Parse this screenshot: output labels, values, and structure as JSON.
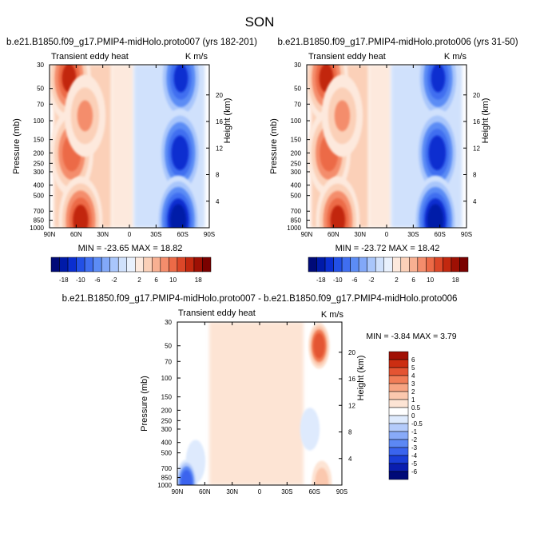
{
  "figure_title": "SON",
  "colors": {
    "red": "#c22410",
    "red_light": "#fbe1d2",
    "blue": "#1338d8",
    "blue_light": "#d6e5fb",
    "scale_left": [
      "#000a78",
      "#001aa8",
      "#0a2ed0",
      "#2250e6",
      "#3f6ef0",
      "#5c8cf5",
      "#82a8f8",
      "#a9c6fb",
      "#d0e1fc",
      "#e9f1fd",
      "#fde9dd",
      "#fbd0b8",
      "#f8b092",
      "#f48d6c",
      "#ec6a47",
      "#dc4728",
      "#c2280f",
      "#9e1004",
      "#7a0100"
    ],
    "scale_diff": [
      "#000a78",
      "#0a1eb0",
      "#1a3ed8",
      "#3a64ee",
      "#5c88f4",
      "#88aaf8",
      "#b4cbfb",
      "#deeafd",
      "#ffffff",
      "#fde4d4",
      "#fbc8ae",
      "#f7a482",
      "#f17d57",
      "#e45432",
      "#cc2e12",
      "#a11004"
    ]
  },
  "panels": [
    {
      "title": "b.e21.B1850.f09_g17.PMIP4-midHolo.proto007 (yrs 182-201)",
      "left_string": "Transient eddy heat",
      "right_string": "K m/s",
      "min": "-23.65",
      "max": "18.82",
      "minmax_text": "MIN = -23.65  MAX = 18.82"
    },
    {
      "title": "b.e21.B1850.f09_g17.PMIP4-midHolo.proto006 (yrs 31-50)",
      "left_string": "Transient eddy heat",
      "right_string": "K m/s",
      "min": "-23.72",
      "max": "18.42",
      "minmax_text": "MIN = -23.72  MAX = 18.42"
    },
    {
      "title": "b.e21.B1850.f09_g17.PMIP4-midHolo.proto007 - b.e21.B1850.f09_g17.PMIP4-midHolo.proto006",
      "left_string": "Transient eddy heat",
      "right_string": "K m/s",
      "min": "-3.84",
      "max": "3.79",
      "minmax_text": "MIN =  -3.84  MAX =   3.79"
    }
  ],
  "axes": {
    "x_ticks": [
      "90N",
      "60N",
      "30N",
      "0",
      "30S",
      "60S",
      "90S"
    ],
    "y_ticks": [
      "30",
      "50",
      "70",
      "100",
      "150",
      "200",
      "250",
      "300",
      "400",
      "500",
      "700",
      "850",
      "1000"
    ],
    "y_label": "Pressure (mb)",
    "height_ticks": [
      "20",
      "16",
      "12",
      "8",
      "4"
    ],
    "height_label": "Height (km)"
  },
  "colorbars": {
    "horizontal_labels": [
      "-18",
      "-10",
      "-6",
      "-2",
      "2",
      "6",
      "10",
      "18"
    ],
    "vertical_labels": [
      "6",
      "5",
      "4",
      "3",
      "2",
      "1",
      "0.5",
      "0",
      "-0.5",
      "-1",
      "-2",
      "-3",
      "-4",
      "-5",
      "-6"
    ]
  },
  "chart_data": [
    {
      "type": "heatmap",
      "title": "b.e21.B1850.f09_g17.PMIP4-midHolo.proto007 (yrs 182-201)",
      "xlabel": "",
      "ylabel": "Pressure (mb)",
      "y2label": "Height (km)",
      "x_range": [
        "90N",
        "90S"
      ],
      "y_range_mb": [
        1000,
        30
      ],
      "min": -23.65,
      "max": 18.82,
      "field": [
        {
          "lat": 68,
          "p": 40,
          "value": 18,
          "sign": 1
        },
        {
          "lat": 65,
          "p": 200,
          "value": 16,
          "sign": 1
        },
        {
          "lat": 55,
          "p": 850,
          "value": 18.8,
          "sign": 1
        },
        {
          "lat": 50,
          "p": 90,
          "value": 10,
          "sign": 1
        },
        {
          "lat": -58,
          "p": 40,
          "value": -18,
          "sign": -1
        },
        {
          "lat": -57,
          "p": 200,
          "value": -20,
          "sign": -1
        },
        {
          "lat": -55,
          "p": 850,
          "value": -23.6,
          "sign": -1
        }
      ],
      "levels": [
        -18,
        -16,
        -14,
        -12,
        -10,
        -8,
        -6,
        -4,
        -2,
        0,
        2,
        4,
        6,
        8,
        10,
        12,
        14,
        16,
        18
      ]
    },
    {
      "type": "heatmap",
      "title": "b.e21.B1850.f09_g17.PMIP4-midHolo.proto006 (yrs 31-50)",
      "xlabel": "",
      "ylabel": "Pressure (mb)",
      "y2label": "Height (km)",
      "x_range": [
        "90N",
        "90S"
      ],
      "y_range_mb": [
        1000,
        30
      ],
      "min": -23.72,
      "max": 18.42,
      "field": [
        {
          "lat": 68,
          "p": 40,
          "value": 18,
          "sign": 1
        },
        {
          "lat": 65,
          "p": 200,
          "value": 16,
          "sign": 1
        },
        {
          "lat": 55,
          "p": 850,
          "value": 18.4,
          "sign": 1
        },
        {
          "lat": 50,
          "p": 90,
          "value": 10,
          "sign": 1
        },
        {
          "lat": -58,
          "p": 40,
          "value": -18,
          "sign": -1
        },
        {
          "lat": -57,
          "p": 200,
          "value": -20,
          "sign": -1
        },
        {
          "lat": -55,
          "p": 850,
          "value": -23.7,
          "sign": -1
        }
      ],
      "levels": [
        -18,
        -16,
        -14,
        -12,
        -10,
        -8,
        -6,
        -4,
        -2,
        0,
        2,
        4,
        6,
        8,
        10,
        12,
        14,
        16,
        18
      ]
    },
    {
      "type": "heatmap",
      "title": "b.e21.B1850.f09_g17.PMIP4-midHolo.proto007 - b.e21.B1850.f09_g17.PMIP4-midHolo.proto006",
      "xlabel": "",
      "ylabel": "Pressure (mb)",
      "y2label": "Height (km)",
      "x_range": [
        "90N",
        "90S"
      ],
      "y_range_mb": [
        1000,
        30
      ],
      "min": -3.84,
      "max": 3.79,
      "field": [
        {
          "lat": -65,
          "p": 50,
          "value": 3.79,
          "sign": 1
        },
        {
          "lat": -68,
          "p": 950,
          "value": 1,
          "sign": 1
        },
        {
          "lat": 30,
          "p": 200,
          "value": 0.3,
          "sign": 1
        },
        {
          "lat": -20,
          "p": 500,
          "value": 0.3,
          "sign": 1
        },
        {
          "lat": -55,
          "p": 300,
          "value": -0.5,
          "sign": -1
        },
        {
          "lat": 70,
          "p": 600,
          "value": -0.5,
          "sign": -1
        },
        {
          "lat": 80,
          "p": 950,
          "value": -3.84,
          "sign": -1
        }
      ],
      "levels": [
        -6,
        -5,
        -4,
        -3,
        -2,
        -1,
        -0.5,
        0,
        0.5,
        1,
        2,
        3,
        4,
        5,
        6
      ]
    }
  ]
}
